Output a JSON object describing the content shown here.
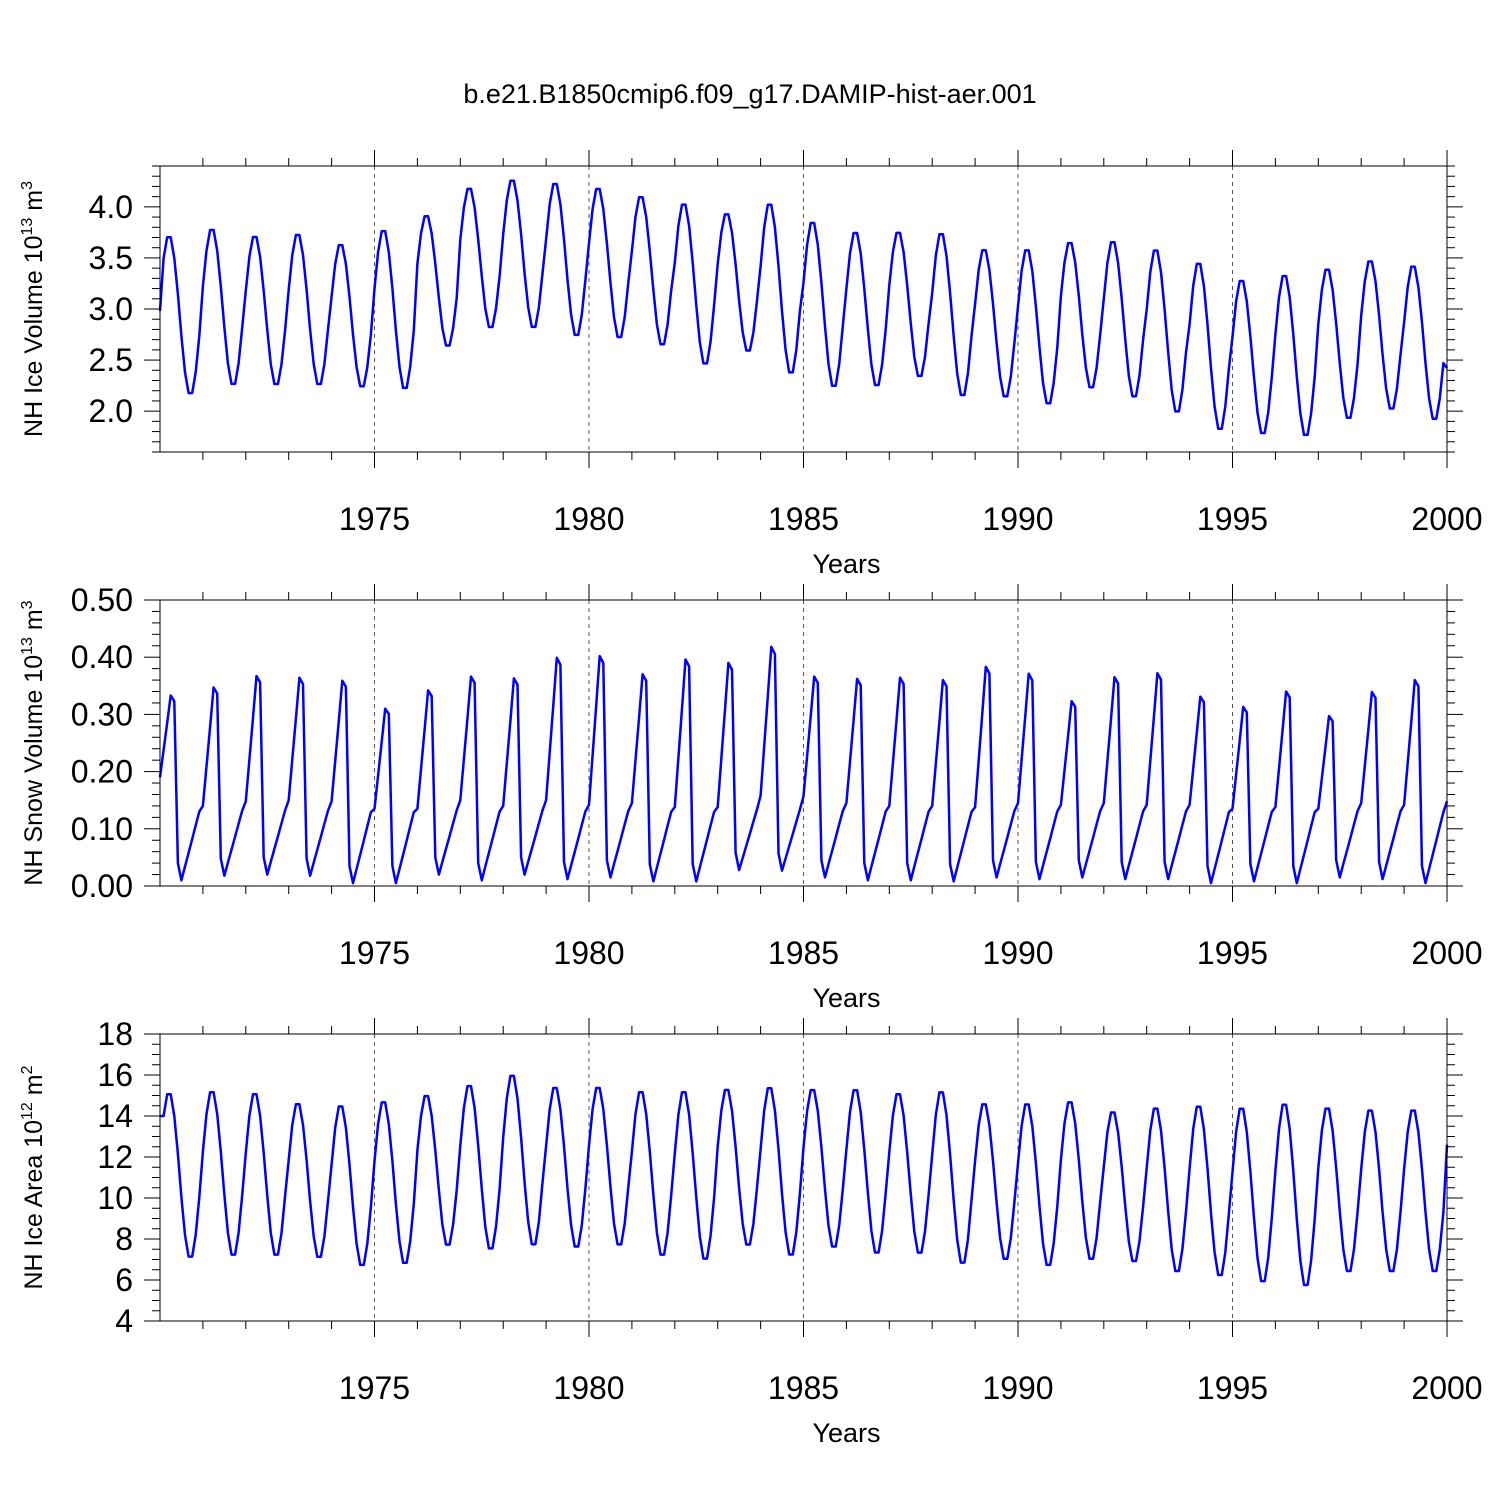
{
  "page_title": "b.e21.B1850cmip6.f09_g17.DAMIP-hist-aer.001",
  "colors": {
    "series": "#0000ff",
    "axis": "#000000",
    "grid": "#555555",
    "background": "#ffffff"
  },
  "chart_data": [
    {
      "type": "line",
      "id": "ice-volume",
      "ylabel": "NH Ice Volume 10",
      "ylabel_exp": "13",
      "ylabel_unit": "m",
      "ylabel_unit_exp": "3",
      "xlabel": "Years",
      "xlim": [
        1970,
        2000
      ],
      "ylim": [
        1.6,
        4.4
      ],
      "yticks": [
        2.0,
        2.5,
        3.0,
        3.5,
        4.0
      ],
      "ytick_labels": [
        "2.0",
        "2.5",
        "3.0",
        "3.5",
        "4.0"
      ],
      "yminor_step": 0.1,
      "xticks": [
        1975,
        1980,
        1985,
        1990,
        1995,
        2000
      ],
      "xtick_labels": [
        "1975",
        "1980",
        "1985",
        "1990",
        "1995",
        "2000"
      ],
      "grid_x": [
        1975,
        1980,
        1985,
        1990,
        1995
      ],
      "year_start": 1970,
      "year_end": 2000,
      "yearly_max": [
        3.73,
        3.8,
        3.73,
        3.75,
        3.65,
        3.79,
        3.93,
        4.2,
        4.28,
        4.25,
        4.2,
        4.12,
        4.05,
        3.95,
        4.05,
        3.87,
        3.77,
        3.77,
        3.76,
        3.6,
        3.6,
        3.67,
        3.68,
        3.6,
        3.47,
        3.3,
        3.35,
        3.41,
        3.49,
        3.44
      ],
      "yearly_min": [
        2.15,
        2.24,
        2.24,
        2.24,
        2.22,
        2.2,
        2.62,
        2.8,
        2.8,
        2.72,
        2.7,
        2.63,
        2.44,
        2.57,
        2.35,
        2.22,
        2.23,
        2.32,
        2.13,
        2.12,
        2.05,
        2.21,
        2.12,
        1.97,
        1.8,
        1.76,
        1.74,
        1.91,
        2.0,
        1.9
      ],
      "start_value": 2.98,
      "end_value": 2.42
    },
    {
      "type": "line",
      "id": "snow-volume",
      "ylabel": "NH Snow Volume 10",
      "ylabel_exp": "13",
      "ylabel_unit": "m",
      "ylabel_unit_exp": "3",
      "xlabel": "Years",
      "xlim": [
        1970,
        2000
      ],
      "ylim": [
        0.0,
        0.5
      ],
      "yticks": [
        0.0,
        0.1,
        0.2,
        0.3,
        0.4,
        0.5
      ],
      "ytick_labels": [
        "0.00",
        "0.10",
        "0.20",
        "0.30",
        "0.40",
        "0.50"
      ],
      "yminor_step": 0.02,
      "xticks": [
        1975,
        1980,
        1985,
        1990,
        1995,
        2000
      ],
      "xtick_labels": [
        "1975",
        "1980",
        "1985",
        "1990",
        "1995",
        "2000"
      ],
      "grid_x": [
        1975,
        1980,
        1985,
        1990,
        1995
      ],
      "year_start": 1970,
      "year_end": 2000,
      "yearly_max": [
        0.333,
        0.347,
        0.367,
        0.364,
        0.359,
        0.31,
        0.342,
        0.366,
        0.363,
        0.399,
        0.402,
        0.37,
        0.396,
        0.39,
        0.418,
        0.366,
        0.362,
        0.364,
        0.36,
        0.383,
        0.371,
        0.323,
        0.365,
        0.372,
        0.331,
        0.313,
        0.34,
        0.297,
        0.339,
        0.36
      ],
      "yearly_min": [
        0.01,
        0.018,
        0.02,
        0.018,
        0.005,
        0.005,
        0.02,
        0.01,
        0.02,
        0.012,
        0.015,
        0.008,
        0.008,
        0.028,
        0.027,
        0.015,
        0.01,
        0.01,
        0.008,
        0.015,
        0.012,
        0.015,
        0.012,
        0.012,
        0.005,
        0.008,
        0.005,
        0.015,
        0.012,
        0.005
      ],
      "start_value": 0.19,
      "end_value": 0.148
    },
    {
      "type": "line",
      "id": "ice-area",
      "ylabel": "NH Ice Area 10",
      "ylabel_exp": "12",
      "ylabel_unit": "m",
      "ylabel_unit_exp": "2",
      "xlabel": "Years",
      "xlim": [
        1970,
        2000
      ],
      "ylim": [
        4,
        18
      ],
      "yticks": [
        4,
        6,
        8,
        10,
        12,
        14,
        16,
        18
      ],
      "ytick_labels": [
        "4",
        "6",
        "8",
        "10",
        "12",
        "14",
        "16",
        "18"
      ],
      "yminor_step": 0.5,
      "xticks": [
        1975,
        1980,
        1985,
        1990,
        1995,
        2000
      ],
      "xtick_labels": [
        "1975",
        "1980",
        "1985",
        "1990",
        "1995",
        "2000"
      ],
      "grid_x": [
        1975,
        1980,
        1985,
        1990,
        1995
      ],
      "year_start": 1970,
      "year_end": 2000,
      "yearly_max": [
        15.2,
        15.3,
        15.2,
        14.7,
        14.6,
        14.8,
        15.1,
        15.6,
        16.1,
        15.5,
        15.5,
        15.3,
        15.3,
        15.4,
        15.5,
        15.4,
        15.4,
        15.2,
        15.3,
        14.7,
        14.7,
        14.8,
        14.3,
        14.5,
        14.6,
        14.5,
        14.7,
        14.5,
        14.4,
        14.4
      ],
      "yearly_min": [
        7.0,
        7.1,
        7.1,
        7.0,
        6.6,
        6.7,
        7.6,
        7.4,
        7.6,
        7.5,
        7.6,
        7.1,
        6.9,
        7.6,
        7.1,
        7.5,
        7.2,
        7.2,
        6.7,
        6.9,
        6.6,
        6.9,
        6.8,
        6.3,
        6.1,
        5.8,
        5.6,
        6.3,
        6.3,
        6.3
      ],
      "start_value": 14.0,
      "end_value": 12.6
    }
  ]
}
